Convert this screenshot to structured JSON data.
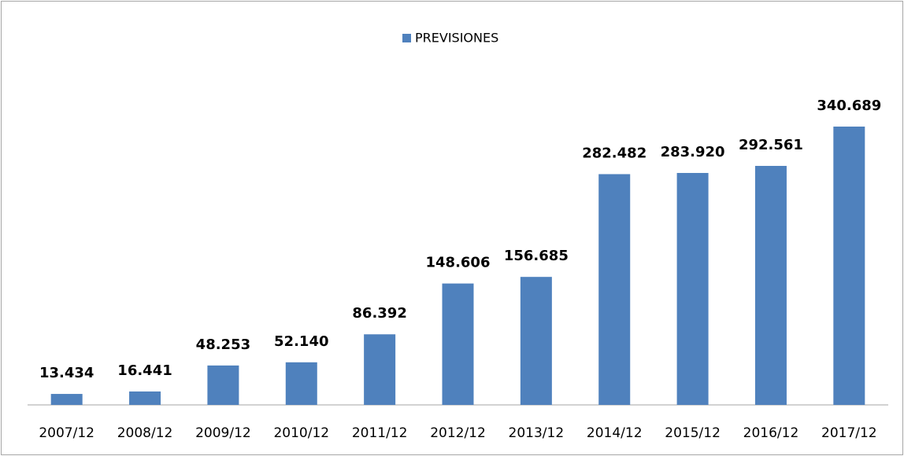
{
  "chart_data": {
    "type": "bar",
    "legend": "PREVISIONES",
    "categories": [
      "2007/12",
      "2008/12",
      "2009/12",
      "2010/12",
      "2011/12",
      "2012/12",
      "2013/12",
      "2014/12",
      "2015/12",
      "2016/12",
      "2017/12"
    ],
    "values": [
      13434,
      16441,
      48253,
      52140,
      86392,
      148606,
      156685,
      282482,
      283920,
      292561,
      340689
    ],
    "value_labels": [
      "13.434",
      "16.441",
      "48.253",
      "52.140",
      "86.392",
      "148.606",
      "156.685",
      "282.482",
      "283.920",
      "292.561",
      "340.689"
    ],
    "color": "#4f81bd"
  }
}
